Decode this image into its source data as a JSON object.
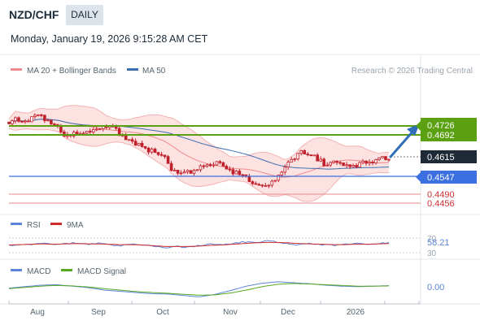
{
  "header": {
    "pair": "NZD/CHF",
    "timeframe": "DAILY",
    "datetime": "Monday, January 19, 2026 9:15:28 AM CET"
  },
  "legend": {
    "ma20_bb": "MA 20 + Bollinger Bands",
    "ma50": "MA 50",
    "credit": "Research © 2026 Trading Central",
    "rsi": "RSI",
    "rsi_ma": "9MA",
    "macd": "MACD",
    "macd_signal": "MACD Signal"
  },
  "colors": {
    "candle": "#c0202a",
    "bb_fill": "#fde2e2",
    "bb_line": "#f3b3b3",
    "ma20": "#ef8a8a",
    "ma50": "#3b6fb0",
    "resistance": "#5aa010",
    "support": "#3c6fe0",
    "pivot": "#e88a8a",
    "arrow": "#2f6fb8",
    "rsi": "#5b83d6",
    "rsi_ma": "#d02a2a",
    "macd": "#5b83d6",
    "macd_signal": "#58a81e",
    "axis_text": "#55656f"
  },
  "chart_data": [
    {
      "type": "candlestick",
      "pair": "NZD/CHF",
      "x_ticks": [
        "Aug",
        "Sep",
        "Oct",
        "Nov",
        "Dec",
        "2026"
      ],
      "close_path": [
        0.4735,
        0.4748,
        0.4742,
        0.4755,
        0.476,
        0.4748,
        0.473,
        0.469,
        0.47,
        0.4705,
        0.4705,
        0.4712,
        0.4718,
        0.4722,
        0.4706,
        0.468,
        0.4666,
        0.4654,
        0.4642,
        0.463,
        0.4618,
        0.4575,
        0.4565,
        0.4563,
        0.4575,
        0.4582,
        0.459,
        0.4598,
        0.4575,
        0.4565,
        0.4554,
        0.4536,
        0.4523,
        0.4516,
        0.4532,
        0.456,
        0.4598,
        0.4618,
        0.4638,
        0.4625,
        0.4608,
        0.4586,
        0.4598,
        0.4587,
        0.458,
        0.4588,
        0.4601,
        0.4604,
        0.461,
        0.4615
      ],
      "levels": [
        {
          "label": "0.4726",
          "value": 0.4726,
          "kind": "resistance"
        },
        {
          "label": "0.4692",
          "value": 0.4692,
          "kind": "resistance"
        },
        {
          "label": "0.4615",
          "value": 0.4615,
          "kind": "last"
        },
        {
          "label": "0.4547",
          "value": 0.4547,
          "kind": "support"
        },
        {
          "label": "0.4490",
          "value": 0.449,
          "kind": "support"
        },
        {
          "label": "0.4456",
          "value": 0.4456,
          "kind": "support"
        }
      ],
      "series": [
        "MA 20 + Bollinger Bands",
        "MA 50"
      ]
    },
    {
      "type": "line",
      "panel": "RSI",
      "series": [
        "RSI",
        "9MA"
      ],
      "y_ticks": [
        "70",
        "30"
      ],
      "last_value": "58.21",
      "rsi_path": [
        50,
        53,
        52,
        56,
        51,
        54,
        57,
        53,
        55,
        52,
        49,
        54,
        52,
        47,
        43,
        48,
        45,
        50,
        53,
        51,
        55,
        60,
        57,
        62,
        59,
        54,
        51,
        55,
        52,
        50,
        53,
        56,
        52,
        55,
        58
      ],
      "ma_path": [
        51,
        52,
        53,
        54,
        53,
        54,
        55,
        54,
        54,
        53,
        52,
        52,
        51,
        49,
        47,
        47,
        47,
        48,
        50,
        51,
        53,
        55,
        57,
        58,
        58,
        57,
        55,
        54,
        53,
        52,
        52,
        53,
        53,
        54,
        55
      ]
    },
    {
      "type": "line",
      "panel": "MACD",
      "series": [
        "MACD",
        "MACD Signal"
      ],
      "last_value": "0.00",
      "macd_path": [
        -0.0002,
        0.0004,
        0.001,
        0.0012,
        0.0006,
        0.0,
        -0.001,
        -0.0015,
        -0.002,
        -0.0025,
        -0.0026,
        -0.0032,
        -0.0038,
        -0.0028,
        -0.0012,
        0.0006,
        0.0018,
        0.0024,
        0.002,
        0.0016,
        0.001,
        0.0006,
        0.0004,
        0.0006,
        0.0008
      ],
      "signal_path": [
        -0.0004,
        0.0001,
        0.0006,
        0.0009,
        0.0007,
        0.0003,
        -0.0004,
        -0.001,
        -0.0016,
        -0.002,
        -0.0023,
        -0.0027,
        -0.0031,
        -0.003,
        -0.0022,
        -0.001,
        0.0004,
        0.0014,
        0.0017,
        0.0015,
        0.0012,
        0.0009,
        0.0006,
        0.0006,
        0.0007
      ]
    }
  ]
}
